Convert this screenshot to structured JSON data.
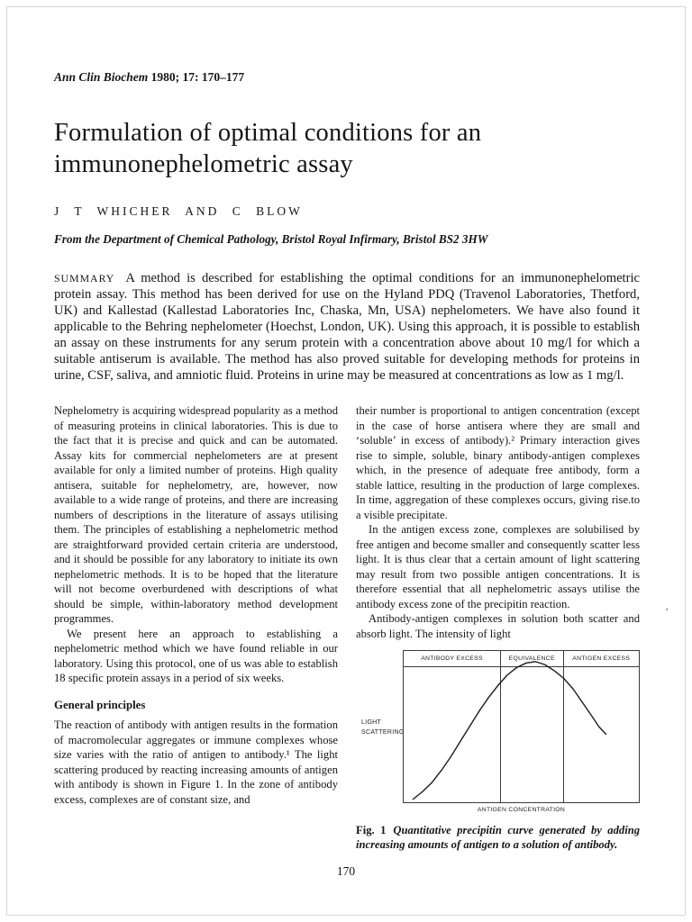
{
  "page": {
    "journal": "Ann Clin Biochem",
    "citation": "1980; 17: 170–177",
    "title": "Formulation of optimal conditions for an immunonephelometric assay",
    "authors": "J T WHICHER AND C BLOW",
    "affiliation": "From the Department of Chemical Pathology, Bristol Royal Infirmary, Bristol BS2 3HW",
    "page_number": "170",
    "artifact": "’"
  },
  "summary": {
    "label": "SUMMARY",
    "text": "A method is described for establishing the optimal conditions for an immunonephelometric protein assay. This method has been derived for use on the Hyland PDQ (Travenol Laboratories, Thetford, UK) and Kallestad (Kallestad Laboratories Inc, Chaska, Mn, USA) nephelometers. We have also found it applicable to the Behring nephelometer (Hoechst, London, UK). Using this approach, it is possible to establish an assay on these instruments for any serum protein with a concentration above about 10 mg/l for which a suitable antiserum is available. The method has also proved suitable for developing methods for proteins in urine, CSF, saliva, and amniotic fluid. Proteins in urine may be measured at concentrations as low as 1 mg/l."
  },
  "columns": {
    "left": {
      "p1": "Nephelometry is acquiring widespread popularity as a method of measuring proteins in clinical laboratories. This is due to the fact that it is precise and quick and can be automated. Assay kits for commercial nephelometers are at present available for only a limited number of proteins. High quality antisera, suitable for nephelometry, are, however, now available to a wide range of proteins, and there are increasing numbers of descriptions in the literature of assays utilising them. The principles of establishing a nephelometric method are straightforward provided certain criteria are understood, and it should be possible for any laboratory to initiate its own nephelometric methods. It is to be hoped that the literature will not become overburdened with descriptions of what should be simple, within-laboratory method development programmes.",
      "p2": "We present here an approach to establishing a nephelometric method which we have found reliable in our laboratory. Using this protocol, one of us was able to establish 18 specific protein assays in a period of six weeks.",
      "heading": "General principles",
      "p3": "The reaction of antibody with antigen results in the formation of macromolecular aggregates or immune complexes whose size varies with the ratio of antigen to antibody.¹ The light scattering produced by reacting increasing amounts of antigen with antibody is shown in Figure 1. In the zone of antibody excess, complexes are of constant size, and"
    },
    "right": {
      "p1": "their number is proportional to antigen concentration (except in the case of horse antisera where they are small and ‘soluble’ in excess of antibody).² Primary interaction gives rise to simple, soluble, binary antibody-antigen complexes which, in the presence of adequate free antibody, form a stable lattice, resulting in the production of large complexes. In time, aggregation of these complexes occurs, giving rise.to a visible precipitate.",
      "p2": "In the antigen excess zone, complexes are solubilised by free antigen and become smaller and consequently scatter less light. It is thus clear that a certain amount of light scattering may result from two possible antigen concentrations. It is therefore essential that all nephelometric assays utilise the antibody excess zone of the precipitin reaction.",
      "p3": "Antibody-antigen complexes in solution both scatter and absorb light. The intensity of light"
    }
  },
  "figure": {
    "zones": [
      "ANTIBODY EXCESS",
      "EQUIVALENCE",
      "ANTIGEN EXCESS"
    ],
    "ylabel_line1": "LIGHT",
    "ylabel_line2": "SCATTERING",
    "xlabel": "ANTIGEN CONCENTRATION",
    "caption_label": "Fig. 1",
    "caption": "Quantitative precipitin curve generated by adding increasing amounts of antigen to a solution of antibody."
  },
  "chart_data": {
    "type": "line",
    "title": "Quantitative precipitin curve",
    "xlabel": "ANTIGEN CONCENTRATION",
    "ylabel": "LIGHT SCATTERING",
    "grid": false,
    "numeric_axes": false,
    "zones": [
      {
        "label": "ANTIBODY EXCESS",
        "x_range_pct": [
          0,
          41
        ]
      },
      {
        "label": "EQUIVALENCE",
        "x_range_pct": [
          41,
          68
        ]
      },
      {
        "label": "ANTIGEN EXCESS",
        "x_range_pct": [
          68,
          100
        ]
      }
    ],
    "zone_boundaries_pct": [
      41,
      68
    ],
    "series": [
      {
        "name": "light scattering vs antigen concentration",
        "points_pct": [
          [
            4,
            2
          ],
          [
            8,
            7
          ],
          [
            12,
            13
          ],
          [
            16,
            21
          ],
          [
            20,
            30
          ],
          [
            24,
            40
          ],
          [
            28,
            50
          ],
          [
            32,
            60
          ],
          [
            36,
            69
          ],
          [
            40,
            77
          ],
          [
            44,
            84
          ],
          [
            48,
            89
          ],
          [
            52,
            92
          ],
          [
            56,
            93
          ],
          [
            60,
            91
          ],
          [
            64,
            87
          ],
          [
            68,
            82
          ],
          [
            72,
            75
          ],
          [
            76,
            66
          ],
          [
            80,
            57
          ],
          [
            83,
            50
          ],
          [
            86,
            45
          ]
        ]
      }
    ]
  }
}
